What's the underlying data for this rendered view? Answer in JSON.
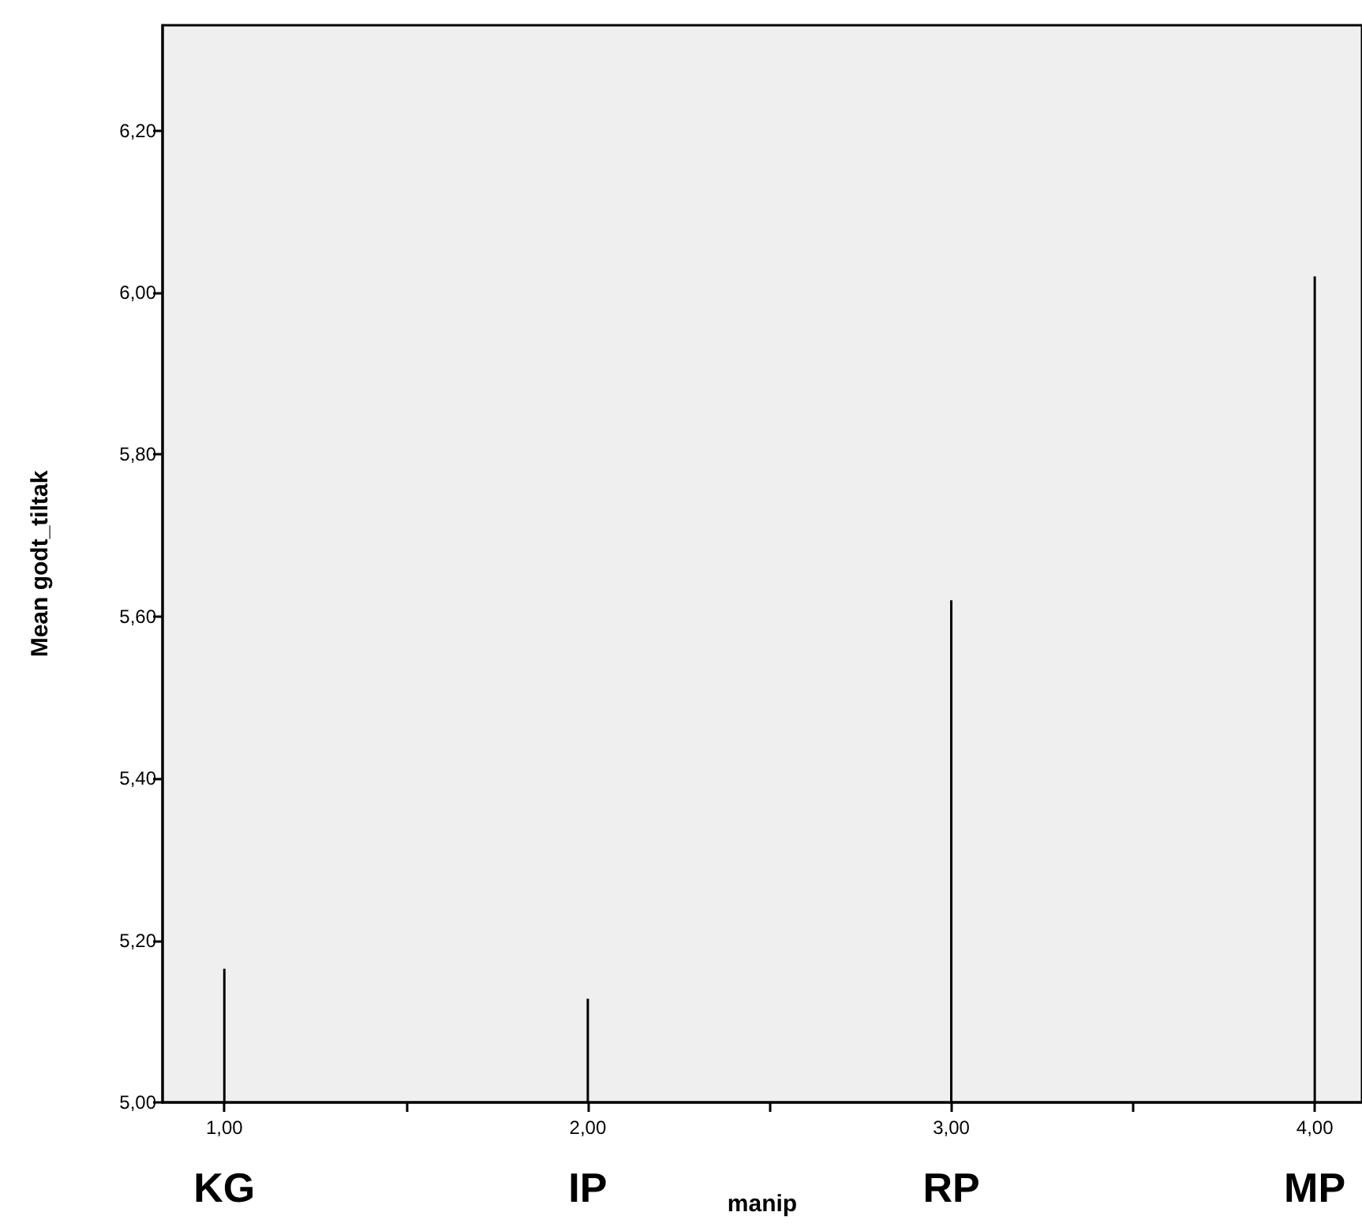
{
  "chart_data": {
    "type": "bar",
    "xlabel": "manip",
    "ylabel": "Mean godt_tiltak",
    "x": [
      1,
      2,
      3,
      4
    ],
    "values": [
      5.165,
      5.128,
      5.62,
      6.02
    ],
    "color": "#000000",
    "xlim": [
      0.83,
      4.13
    ],
    "xticks": [
      {
        "value": 1,
        "label": "1,00"
      },
      {
        "value": 1.5,
        "label": null
      },
      {
        "value": 2,
        "label": "2,00"
      },
      {
        "value": 2.5,
        "label": null
      },
      {
        "value": 3,
        "label": "3,00"
      },
      {
        "value": 3.5,
        "label": null
      },
      {
        "value": 4,
        "label": "4,00"
      }
    ],
    "ylim": [
      5,
      6.33
    ],
    "yticks": [
      {
        "value": 5,
        "label": "5,00"
      },
      {
        "value": 5.2,
        "label": "5,20"
      },
      {
        "value": 5.4,
        "label": "5,40"
      },
      {
        "value": 5.6,
        "label": "5,60"
      },
      {
        "value": 5.8,
        "label": "5,80"
      },
      {
        "value": 6,
        "label": "6,00"
      },
      {
        "value": 6.2,
        "label": "6,20"
      }
    ],
    "annotations": [
      "KG",
      "IP",
      "RP",
      "MP"
    ],
    "grid": false
  }
}
